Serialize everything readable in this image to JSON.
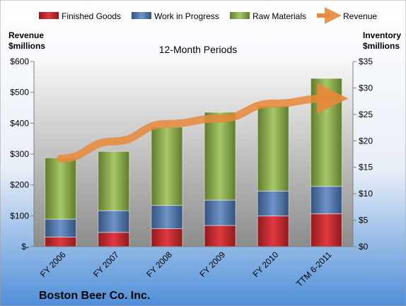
{
  "chart_data": {
    "type": "bar",
    "stacked": true,
    "subtitle": "12-Month Periods",
    "company": "Boston Beer Co. Inc.",
    "categories": [
      "FY 2006",
      "FY 2007",
      "FY 2008",
      "FY 2009",
      "FY 2010",
      "TTM 6-2011"
    ],
    "left_axis": {
      "title_line1": "Revenue",
      "title_line2": "$millions",
      "ylim": [
        0,
        600
      ],
      "ticks": [
        0,
        100,
        200,
        300,
        400,
        500,
        600
      ],
      "tick_labels": [
        "$-",
        "$100",
        "$200",
        "$300",
        "$400",
        "$500",
        "$600"
      ]
    },
    "right_axis": {
      "title_line1": "Inventory",
      "title_line2": "$millions",
      "ylim": [
        0,
        35
      ],
      "ticks": [
        0,
        5,
        10,
        15,
        20,
        25,
        30,
        35
      ],
      "tick_labels": [
        "$0",
        "$5",
        "$10",
        "$15",
        "$20",
        "$25",
        "$30",
        "$35"
      ]
    },
    "series": [
      {
        "name": "Finished Goods",
        "axis": "right",
        "color": "#c0272d",
        "values": [
          1.8,
          2.7,
          3.4,
          4.0,
          5.8,
          6.2
        ]
      },
      {
        "name": "Work in Progress",
        "axis": "right",
        "color": "#4a6fa5",
        "values": [
          3.4,
          4.1,
          4.4,
          4.8,
          4.7,
          5.2
        ]
      },
      {
        "name": "Raw Materials",
        "axis": "right",
        "color": "#8eb04c",
        "values": [
          11.6,
          11.2,
          14.8,
          16.6,
          16.1,
          20.4
        ]
      },
      {
        "name": "Revenue",
        "axis": "left",
        "type": "line",
        "color": "#e8883a",
        "values": [
          285,
          341,
          398,
          415,
          464,
          480
        ]
      }
    ],
    "legend_position": "top",
    "grid": false
  }
}
